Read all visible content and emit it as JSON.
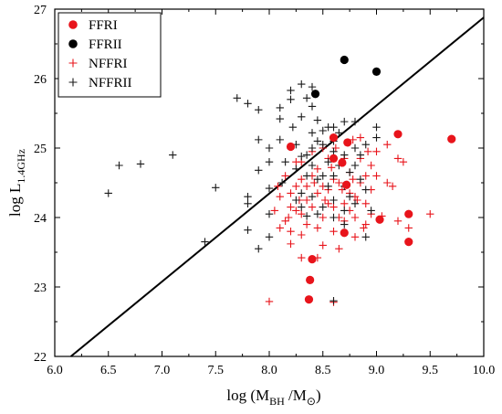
{
  "chart_data": {
    "type": "scatter",
    "xlabel": {
      "main": "log (M",
      "sub1": "BH",
      "mid": " /M",
      "sub2": "⊙",
      "end": ")"
    },
    "ylabel": {
      "main": "log L",
      "sub": "1.4GHz"
    },
    "xlim": [
      6.0,
      10.0
    ],
    "ylim": [
      22,
      27
    ],
    "xticks": [
      "6.0",
      "6.5",
      "7.0",
      "7.5",
      "8.0",
      "8.5",
      "9.0",
      "9.5",
      "10.0"
    ],
    "yticks": [
      "22",
      "23",
      "24",
      "25",
      "26",
      "27"
    ],
    "grid": false,
    "legend_position": "top-left",
    "line": {
      "x": [
        6.15,
        10.0
      ],
      "y": [
        22.0,
        26.88
      ]
    },
    "series": [
      {
        "name": "FFRI",
        "marker": "circle",
        "color": "#e8141b",
        "points": [
          [
            8.2,
            25.02
          ],
          [
            8.4,
            23.4
          ],
          [
            8.38,
            23.1
          ],
          [
            8.37,
            22.82
          ],
          [
            8.6,
            25.15
          ],
          [
            8.6,
            24.85
          ],
          [
            8.68,
            24.79
          ],
          [
            8.7,
            23.78
          ],
          [
            8.72,
            24.47
          ],
          [
            8.73,
            25.08
          ],
          [
            9.03,
            23.97
          ],
          [
            9.2,
            25.2
          ],
          [
            9.3,
            24.05
          ],
          [
            9.3,
            23.65
          ],
          [
            9.7,
            25.13
          ]
        ]
      },
      {
        "name": "FFRII",
        "marker": "circle",
        "color": "#000000",
        "points": [
          [
            8.43,
            25.78
          ],
          [
            8.7,
            26.27
          ],
          [
            9.0,
            26.1
          ]
        ]
      },
      {
        "name": "NFFRI",
        "marker": "plus",
        "color": "#e8141b",
        "points": [
          [
            8.0,
            22.79
          ],
          [
            8.3,
            23.42
          ],
          [
            8.45,
            23.42
          ],
          [
            8.6,
            22.78
          ],
          [
            8.2,
            23.62
          ],
          [
            8.3,
            23.75
          ],
          [
            8.5,
            23.6
          ],
          [
            8.65,
            23.55
          ],
          [
            8.8,
            23.72
          ],
          [
            8.9,
            23.9
          ],
          [
            9.05,
            24.02
          ],
          [
            9.2,
            23.95
          ],
          [
            9.3,
            23.85
          ],
          [
            9.5,
            24.05
          ],
          [
            9.1,
            24.5
          ],
          [
            9.15,
            24.45
          ],
          [
            9.2,
            24.85
          ],
          [
            9.25,
            24.8
          ],
          [
            9.1,
            25.05
          ],
          [
            8.05,
            24.1
          ],
          [
            8.1,
            24.3
          ],
          [
            8.15,
            23.95
          ],
          [
            8.2,
            24.15
          ],
          [
            8.25,
            24.45
          ],
          [
            8.3,
            24.05
          ],
          [
            8.35,
            24.25
          ],
          [
            8.4,
            24.6
          ],
          [
            8.45,
            24.35
          ],
          [
            8.5,
            24.0
          ],
          [
            8.55,
            24.4
          ],
          [
            8.6,
            24.15
          ],
          [
            8.65,
            24.5
          ],
          [
            8.7,
            24.2
          ],
          [
            8.75,
            24.65
          ],
          [
            8.8,
            24.3
          ],
          [
            8.85,
            24.5
          ],
          [
            8.9,
            24.2
          ],
          [
            8.95,
            24.75
          ],
          [
            9.0,
            24.6
          ],
          [
            8.15,
            24.6
          ],
          [
            8.2,
            24.35
          ],
          [
            8.25,
            24.1
          ],
          [
            8.3,
            24.55
          ],
          [
            8.35,
            23.9
          ],
          [
            8.4,
            24.15
          ],
          [
            8.45,
            24.7
          ],
          [
            8.5,
            24.45
          ],
          [
            8.55,
            24.2
          ],
          [
            8.6,
            24.55
          ],
          [
            8.65,
            24.0
          ],
          [
            8.7,
            24.85
          ],
          [
            8.75,
            24.35
          ],
          [
            8.8,
            24.0
          ],
          [
            8.85,
            24.85
          ],
          [
            8.9,
            24.6
          ],
          [
            8.95,
            24.4
          ],
          [
            9.0,
            24.95
          ],
          [
            8.5,
            25.0
          ],
          [
            8.55,
            24.85
          ],
          [
            8.62,
            25.0
          ],
          [
            8.78,
            25.12
          ],
          [
            8.85,
            25.15
          ],
          [
            8.92,
            24.95
          ],
          [
            8.3,
            24.8
          ],
          [
            8.25,
            24.8
          ],
          [
            8.4,
            24.95
          ],
          [
            8.6,
            23.8
          ],
          [
            8.7,
            23.95
          ],
          [
            8.75,
            24.1
          ],
          [
            8.82,
            24.25
          ],
          [
            8.88,
            23.85
          ],
          [
            8.95,
            24.05
          ],
          [
            8.45,
            23.85
          ],
          [
            8.35,
            24.45
          ],
          [
            8.1,
            23.85
          ],
          [
            8.2,
            23.8
          ],
          [
            8.52,
            24.25
          ],
          [
            8.68,
            24.4
          ],
          [
            8.78,
            24.55
          ],
          [
            8.58,
            24.72
          ],
          [
            8.42,
            24.5
          ],
          [
            8.28,
            24.25
          ],
          [
            8.18,
            24.0
          ],
          [
            8.08,
            24.45
          ]
        ]
      },
      {
        "name": "NFFRII",
        "marker": "plus",
        "color": "#1a1a1a",
        "points": [
          [
            6.5,
            24.35
          ],
          [
            6.6,
            24.75
          ],
          [
            6.8,
            24.77
          ],
          [
            7.1,
            24.9
          ],
          [
            7.4,
            23.65
          ],
          [
            7.5,
            24.43
          ],
          [
            7.7,
            25.72
          ],
          [
            7.8,
            25.64
          ],
          [
            7.8,
            24.3
          ],
          [
            7.8,
            24.2
          ],
          [
            7.8,
            23.82
          ],
          [
            7.9,
            23.55
          ],
          [
            7.9,
            24.68
          ],
          [
            7.9,
            25.12
          ],
          [
            7.9,
            25.55
          ],
          [
            8.0,
            25.0
          ],
          [
            8.0,
            24.8
          ],
          [
            8.0,
            24.42
          ],
          [
            8.0,
            24.05
          ],
          [
            8.0,
            23.72
          ],
          [
            8.1,
            25.58
          ],
          [
            8.1,
            25.42
          ],
          [
            8.1,
            25.12
          ],
          [
            8.12,
            24.5
          ],
          [
            8.2,
            25.83
          ],
          [
            8.2,
            25.7
          ],
          [
            8.22,
            25.3
          ],
          [
            8.25,
            25.05
          ],
          [
            8.3,
            25.92
          ],
          [
            8.3,
            25.45
          ],
          [
            8.3,
            24.88
          ],
          [
            8.3,
            24.35
          ],
          [
            8.3,
            24.15
          ],
          [
            8.35,
            25.72
          ],
          [
            8.35,
            24.02
          ],
          [
            8.4,
            25.88
          ],
          [
            8.4,
            25.6
          ],
          [
            8.4,
            25.22
          ],
          [
            8.4,
            25.0
          ],
          [
            8.4,
            24.75
          ],
          [
            8.4,
            24.3
          ],
          [
            8.45,
            25.4
          ],
          [
            8.45,
            24.55
          ],
          [
            8.5,
            25.25
          ],
          [
            8.5,
            25.05
          ],
          [
            8.5,
            24.6
          ],
          [
            8.5,
            24.15
          ],
          [
            8.55,
            25.3
          ],
          [
            8.6,
            25.3
          ],
          [
            8.6,
            25.1
          ],
          [
            8.6,
            24.95
          ],
          [
            8.6,
            24.6
          ],
          [
            8.6,
            24.25
          ],
          [
            8.6,
            24.0
          ],
          [
            8.6,
            22.8
          ],
          [
            8.65,
            25.22
          ],
          [
            8.7,
            25.38
          ],
          [
            8.7,
            24.9
          ],
          [
            8.7,
            24.45
          ],
          [
            8.7,
            24.1
          ],
          [
            8.7,
            23.9
          ],
          [
            8.75,
            24.65
          ],
          [
            8.8,
            25.38
          ],
          [
            8.8,
            25.0
          ],
          [
            8.8,
            24.75
          ],
          [
            8.8,
            24.2
          ],
          [
            8.85,
            24.9
          ],
          [
            8.9,
            25.05
          ],
          [
            8.9,
            24.4
          ],
          [
            8.9,
            23.72
          ],
          [
            9.0,
            25.3
          ],
          [
            9.0,
            25.15
          ],
          [
            8.95,
            24.1
          ],
          [
            8.25,
            24.7
          ],
          [
            8.15,
            24.8
          ],
          [
            8.35,
            24.6
          ],
          [
            8.45,
            24.05
          ],
          [
            8.55,
            24.45
          ],
          [
            8.65,
            24.75
          ],
          [
            8.75,
            24.3
          ],
          [
            8.25,
            24.25
          ],
          [
            8.35,
            24.9
          ],
          [
            8.55,
            24.8
          ],
          [
            8.85,
            24.55
          ],
          [
            8.45,
            25.1
          ]
        ]
      }
    ]
  }
}
